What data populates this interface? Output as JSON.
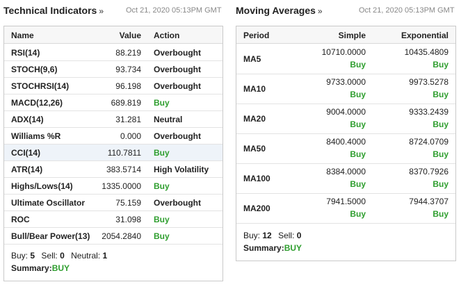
{
  "left": {
    "title": "Technical Indicators",
    "arrow": "»",
    "timestamp": "Oct 21, 2020 05:13PM GMT",
    "columns": {
      "name": "Name",
      "value": "Value",
      "action": "Action"
    },
    "rows": [
      {
        "name": "RSI(14)",
        "value": "88.219",
        "action": "Overbought"
      },
      {
        "name": "STOCH(9,6)",
        "value": "93.734",
        "action": "Overbought"
      },
      {
        "name": "STOCHRSI(14)",
        "value": "96.198",
        "action": "Overbought"
      },
      {
        "name": "MACD(12,26)",
        "value": "689.819",
        "action": "Buy"
      },
      {
        "name": "ADX(14)",
        "value": "31.281",
        "action": "Neutral"
      },
      {
        "name": "Williams %R",
        "value": "0.000",
        "action": "Overbought"
      },
      {
        "name": "CCI(14)",
        "value": "110.7811",
        "action": "Buy"
      },
      {
        "name": "ATR(14)",
        "value": "383.5714",
        "action": "High Volatility"
      },
      {
        "name": "Highs/Lows(14)",
        "value": "1335.0000",
        "action": "Buy"
      },
      {
        "name": "Ultimate Oscillator",
        "value": "75.159",
        "action": "Overbought"
      },
      {
        "name": "ROC",
        "value": "31.098",
        "action": "Buy"
      },
      {
        "name": "Bull/Bear Power(13)",
        "value": "2054.2840",
        "action": "Buy"
      }
    ],
    "summary": {
      "buy_label": "Buy:",
      "buy_count": "5",
      "sell_label": "Sell:",
      "sell_count": "0",
      "neutral_label": "Neutral:",
      "neutral_count": "1",
      "summary_label": "Summary:",
      "summary_value": "BUY"
    }
  },
  "right": {
    "title": "Moving Averages",
    "arrow": "»",
    "timestamp": "Oct 21, 2020 05:13PM GMT",
    "columns": {
      "period": "Period",
      "simple": "Simple",
      "exponential": "Exponential"
    },
    "rows": [
      {
        "period": "MA5",
        "simple": "10710.0000",
        "simple_action": "Buy",
        "exponential": "10435.4809",
        "exponential_action": "Buy"
      },
      {
        "period": "MA10",
        "simple": "9733.0000",
        "simple_action": "Buy",
        "exponential": "9973.5278",
        "exponential_action": "Buy"
      },
      {
        "period": "MA20",
        "simple": "9004.0000",
        "simple_action": "Buy",
        "exponential": "9333.2439",
        "exponential_action": "Buy"
      },
      {
        "period": "MA50",
        "simple": "8400.4000",
        "simple_action": "Buy",
        "exponential": "8724.0709",
        "exponential_action": "Buy"
      },
      {
        "period": "MA100",
        "simple": "8384.0000",
        "simple_action": "Buy",
        "exponential": "8370.7926",
        "exponential_action": "Buy"
      },
      {
        "period": "MA200",
        "simple": "7941.5000",
        "simple_action": "Buy",
        "exponential": "7944.3707",
        "exponential_action": "Buy"
      }
    ],
    "summary": {
      "buy_label": "Buy:",
      "buy_count": "12",
      "sell_label": "Sell:",
      "sell_count": "0",
      "summary_label": "Summary:",
      "summary_value": "BUY"
    }
  },
  "colors": {
    "buy": "#2e9e2e",
    "neutral": "#222222",
    "header_bg": "#f7f7f7",
    "highlight_row": "#eef3f9"
  }
}
